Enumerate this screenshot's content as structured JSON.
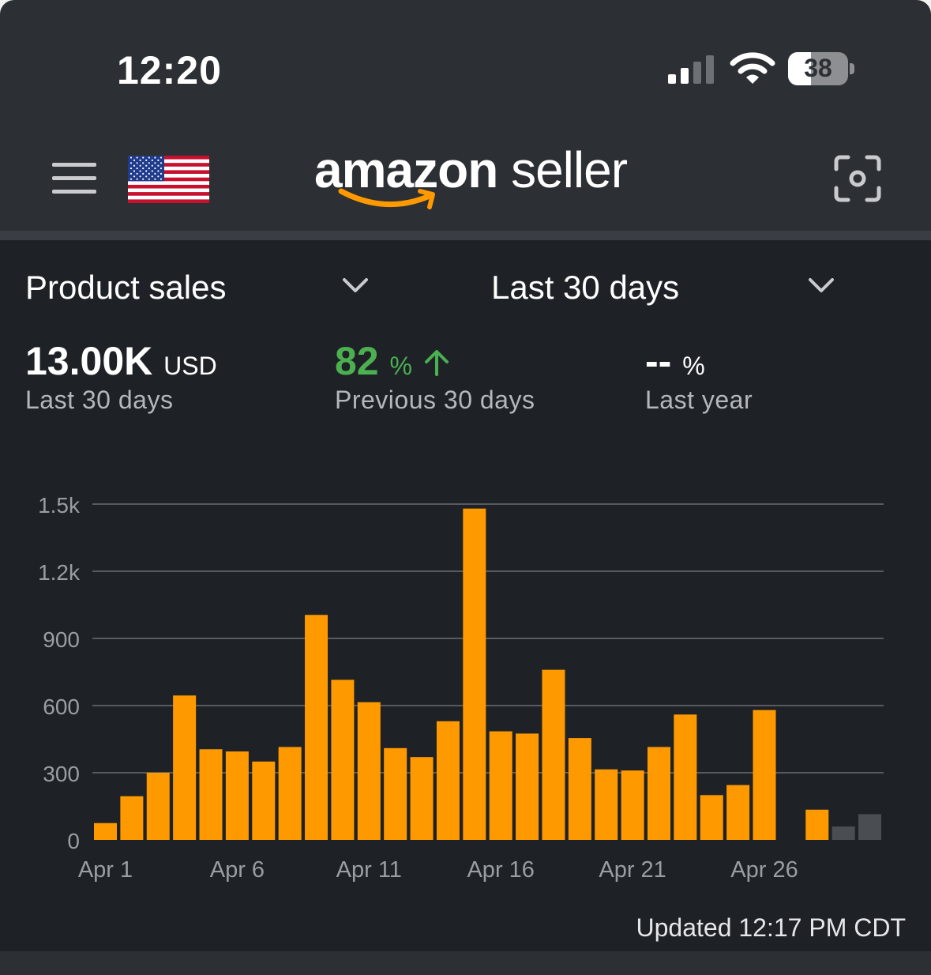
{
  "status_bar": {
    "time": "12:20",
    "battery_level": "38",
    "icons": [
      "cellular-signal-icon",
      "wifi-icon",
      "battery-icon"
    ]
  },
  "header": {
    "logo_brand": "amazon",
    "logo_suffix": "seller",
    "menu_icon": "menu-icon",
    "region_flag": "us-flag-icon",
    "scan_icon": "scan-icon"
  },
  "filters": {
    "metric": "Product sales",
    "range": "Last 30 days"
  },
  "metrics": {
    "total_value": "13.00K",
    "total_unit": "USD",
    "total_caption": "Last 30 days",
    "prev_change": "82",
    "prev_unit": "%",
    "prev_caption": "Previous 30 days",
    "year_change": "--",
    "year_unit": "%",
    "year_caption": "Last year"
  },
  "colors": {
    "bar": "#ff9900",
    "bar_partial": "#4a4d52",
    "positive": "#4caf50",
    "background": "#1e2227"
  },
  "chart_data": {
    "type": "bar",
    "categories": [
      "Apr 1",
      "Apr 2",
      "Apr 3",
      "Apr 4",
      "Apr 5",
      "Apr 6",
      "Apr 7",
      "Apr 8",
      "Apr 9",
      "Apr 10",
      "Apr 11",
      "Apr 12",
      "Apr 13",
      "Apr 14",
      "Apr 15",
      "Apr 16",
      "Apr 17",
      "Apr 18",
      "Apr 19",
      "Apr 20",
      "Apr 21",
      "Apr 22",
      "Apr 23",
      "Apr 24",
      "Apr 25",
      "Apr 26",
      "Apr 27",
      "Apr 28",
      "Apr 29",
      "Apr 30"
    ],
    "values": [
      75,
      195,
      300,
      645,
      405,
      395,
      350,
      415,
      1005,
      715,
      615,
      410,
      370,
      530,
      1480,
      485,
      475,
      760,
      455,
      315,
      310,
      415,
      560,
      200,
      245,
      580,
      0,
      135,
      60,
      115
    ],
    "partial_day_indices": [
      28,
      29
    ],
    "x_tick_labels": [
      "Apr 1",
      "Apr 6",
      "Apr 11",
      "Apr 16",
      "Apr 21",
      "Apr 26"
    ],
    "y_ticks": [
      "0",
      "300",
      "600",
      "900",
      "1.2k",
      "1.5k"
    ],
    "ylim": [
      0,
      1500
    ],
    "grid": true,
    "legend": "none"
  },
  "footer": {
    "updated": "Updated 12:17 PM CDT"
  }
}
